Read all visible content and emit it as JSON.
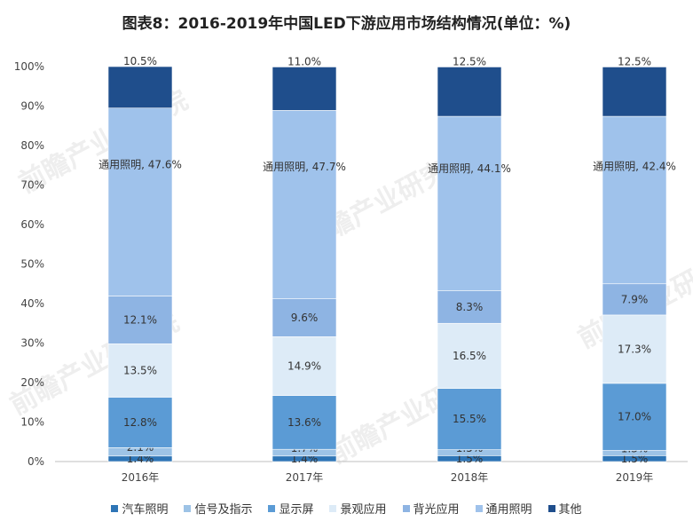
{
  "chart_data": {
    "type": "bar",
    "stacked": true,
    "title": "图表8：2016-2019年中国LED下游应用市场结构情况(单位：%)",
    "categories": [
      "2016年",
      "2017年",
      "2018年",
      "2019年"
    ],
    "ylim": [
      0,
      100
    ],
    "yticks": [
      "0%",
      "10%",
      "20%",
      "30%",
      "40%",
      "50%",
      "60%",
      "70%",
      "80%",
      "90%",
      "100%"
    ],
    "series": [
      {
        "name": "汽车照明",
        "color": "#2e75b6",
        "values": [
          1.4,
          1.4,
          1.5,
          1.5
        ],
        "labels": [
          "1.4%",
          "1.4%",
          "1.5%",
          "1.5%"
        ]
      },
      {
        "name": "信号及指示",
        "color": "#9dc3e6",
        "values": [
          2.1,
          1.7,
          1.5,
          1.3
        ],
        "labels": [
          "2.1%",
          "1.7%",
          "1.5%",
          "1.3%"
        ]
      },
      {
        "name": "显示屏",
        "color": "#5b9bd5",
        "values": [
          12.8,
          13.6,
          15.5,
          17.0
        ],
        "labels": [
          "12.8%",
          "13.6%",
          "15.5%",
          "17.0%"
        ]
      },
      {
        "name": "景观应用",
        "color": "#ddebf7",
        "values": [
          13.5,
          14.9,
          16.5,
          17.3
        ],
        "labels": [
          "13.5%",
          "14.9%",
          "16.5%",
          "17.3%"
        ]
      },
      {
        "name": "背光应用",
        "color": "#8eb4e3",
        "values": [
          12.1,
          9.6,
          8.3,
          7.9
        ],
        "labels": [
          "12.1%",
          "9.6%",
          "8.3%",
          "7.9%"
        ]
      },
      {
        "name": "通用照明",
        "color": "#9fc2eb",
        "values": [
          47.6,
          47.7,
          44.1,
          42.4
        ],
        "labels": [
          "通用照明, 47.6%",
          "通用照明, 47.7%",
          "通用照明, 44.1%",
          "通用照明, 42.4%"
        ]
      },
      {
        "name": "其他",
        "color": "#1f4e8c",
        "values": [
          10.5,
          11.0,
          12.5,
          12.5
        ],
        "labels": [
          "10.5%",
          "11.0%",
          "12.5%",
          "12.5%"
        ]
      }
    ],
    "legend_position": "bottom"
  },
  "watermark": "前瞻产业研究院"
}
